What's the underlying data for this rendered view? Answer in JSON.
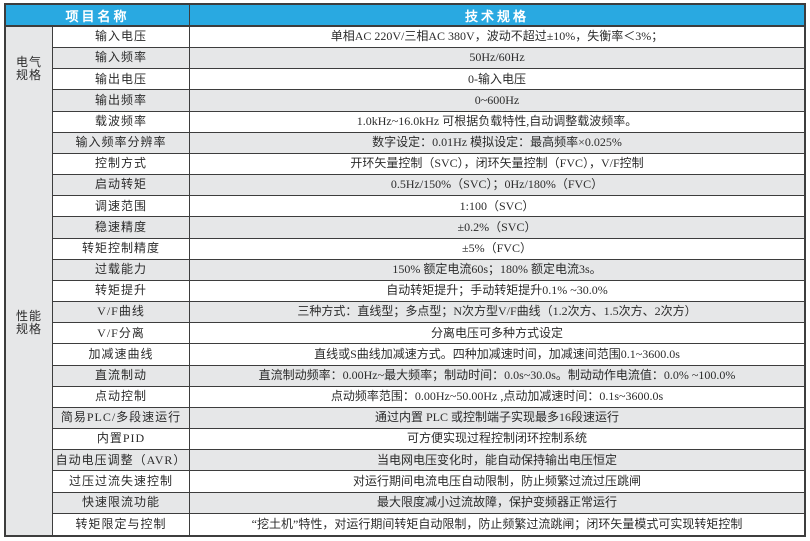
{
  "colors": {
    "header_bg": "#29a9e1",
    "stripe": "#e6e7e8",
    "border": "#3d3d3d"
  },
  "table": {
    "header": {
      "item_label": "项目名称",
      "spec_label": "技术规格"
    },
    "groups": [
      {
        "name": "电气规格",
        "rows": [
          {
            "label": "输入电压",
            "value": "单相AC 220V/三相AC 380V，波动不超过±10%，失衡率＜3%；",
            "shaded": false
          },
          {
            "label": "输入频率",
            "value": "50Hz/60Hz",
            "shaded": true
          },
          {
            "label": "输出电压",
            "value": "0-输入电压",
            "shaded": false
          },
          {
            "label": "输出频率",
            "value": "0~600Hz",
            "shaded": true
          }
        ]
      },
      {
        "name": "性能规格",
        "rows": [
          {
            "label": "载波频率",
            "value": "1.0kHz~16.0kHz 可根据负载特性,自动调整载波频率。",
            "shaded": false
          },
          {
            "label": "输入频率分辨率",
            "value": "数字设定：0.01Hz 模拟设定：最高频率×0.025%",
            "shaded": true
          },
          {
            "label": "控制方式",
            "value": "开环矢量控制（SVC），闭环矢量控制（FVC），V/F控制",
            "shaded": false
          },
          {
            "label": "启动转矩",
            "value": "0.5Hz/150%（SVC）；0Hz/180%（FVC）",
            "shaded": true
          },
          {
            "label": "调速范围",
            "value": "1:100（SVC）",
            "shaded": false
          },
          {
            "label": "稳速精度",
            "value": "±0.2%（SVC）",
            "shaded": true
          },
          {
            "label": "转矩控制精度",
            "value": "±5%（FVC）",
            "shaded": false
          },
          {
            "label": "过载能力",
            "value": "150% 额定电流60s；180% 额定电流3s。",
            "shaded": true
          },
          {
            "label": "转矩提升",
            "value": "自动转矩提升；手动转矩提升0.1% ~30.0%",
            "shaded": false
          },
          {
            "label": "V/F曲线",
            "value": "三种方式：直线型；多点型；N次方型V/F曲线（1.2次方、1.5次方、2次方）",
            "shaded": true
          },
          {
            "label": "V/F分离",
            "value": "分离电压可多种方式设定",
            "shaded": false
          },
          {
            "label": "加减速曲线",
            "value": "直线或S曲线加减速方式。四种加减速时间，加减速间范围0.1~3600.0s",
            "shaded": false
          },
          {
            "label": "直流制动",
            "value": "直流制动频率：0.00Hz~最大频率；制动时间：0.0s~30.0s。制动动作电流值：0.0% ~100.0%",
            "shaded": true
          },
          {
            "label": "点动控制",
            "value": "点动频率范围：0.00Hz~50.00Hz ,点动加减速时间：0.1s~3600.0s",
            "shaded": false
          },
          {
            "label": "简易PLC/多段速运行",
            "value": "通过内置 PLC 或控制端子实现最多16段速运行",
            "shaded": true
          },
          {
            "label": "内置PID",
            "value": "可方便实现过程控制闭环控制系统",
            "shaded": false
          },
          {
            "label": "自动电压调整（AVR）",
            "value": "当电网电压变化时，能自动保持输出电压恒定",
            "shaded": true
          },
          {
            "label": "过压过流失速控制",
            "value": "对运行期间电流电压自动限制，防止频繁过流过压跳闸",
            "shaded": false
          },
          {
            "label": "快速限流功能",
            "value": "最大限度减小过流故障，保护变频器正常运行",
            "shaded": true
          },
          {
            "label": "转矩限定与控制",
            "value": "“挖土机”特性，对运行期间转矩自动限制，防止频繁过流跳闸；闭环矢量模式可实现转矩控制",
            "shaded": false
          }
        ]
      }
    ]
  }
}
